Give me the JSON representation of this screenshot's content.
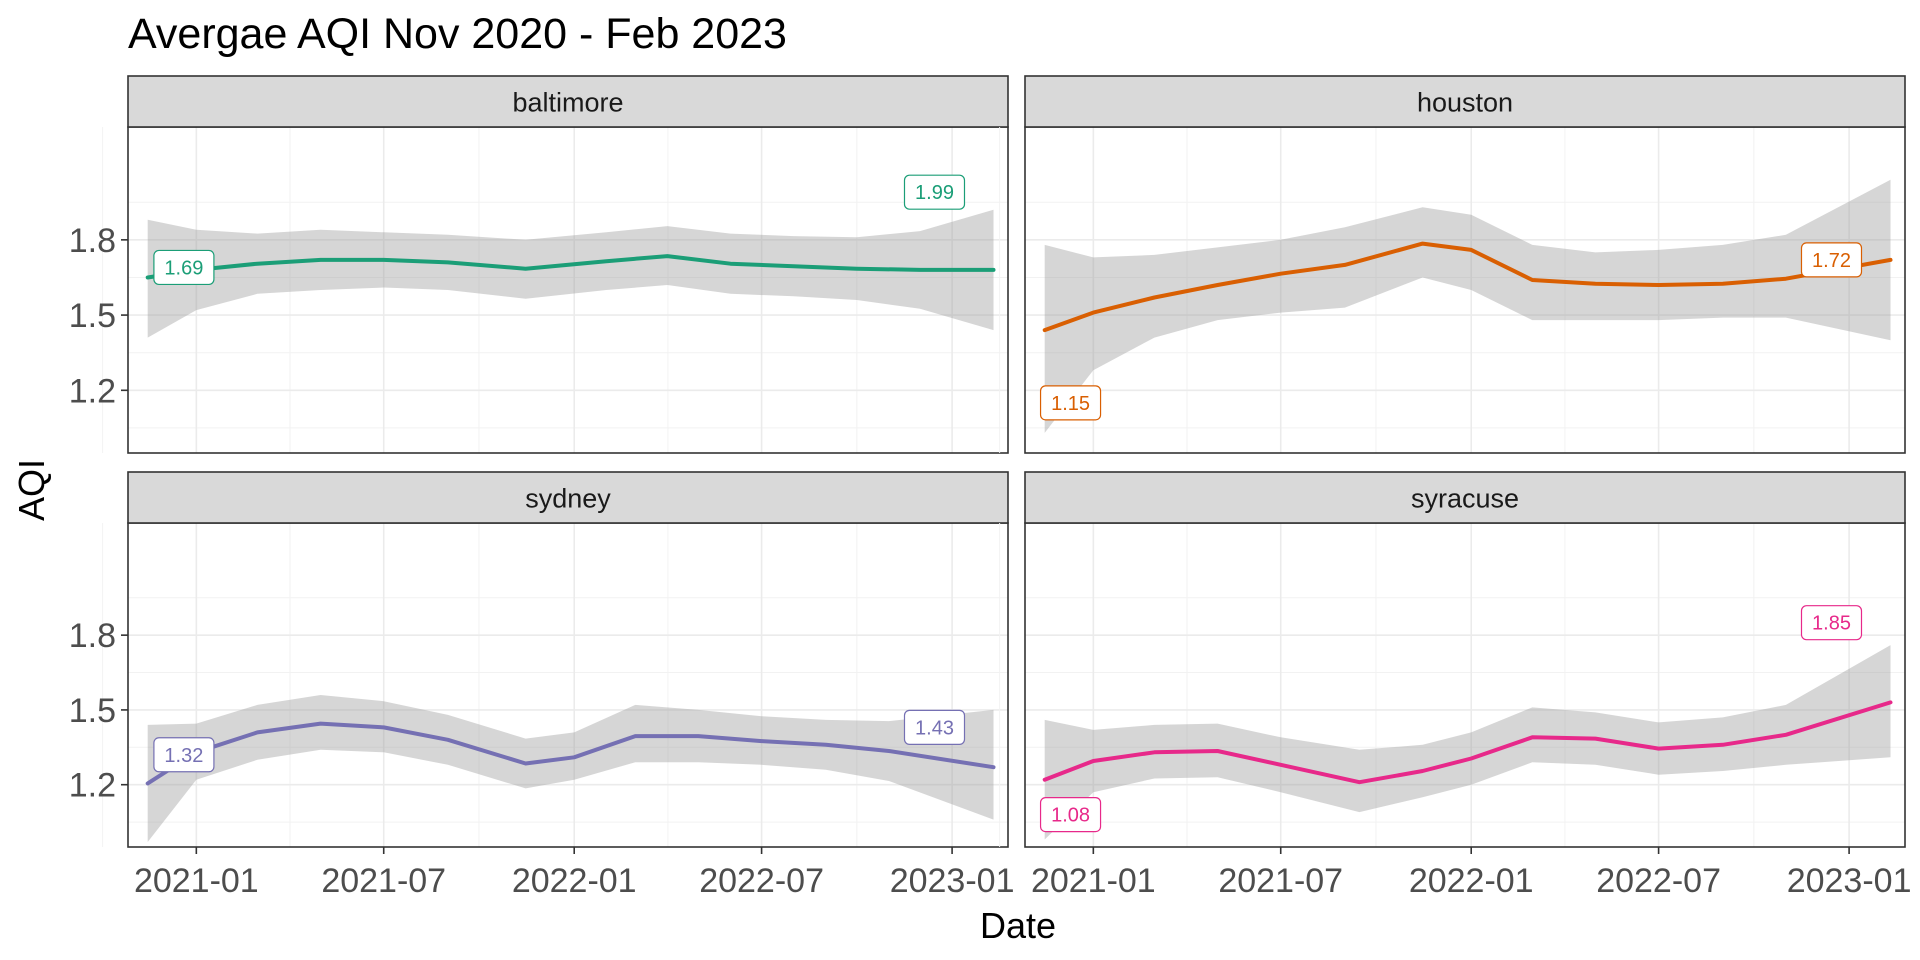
{
  "chart_data": {
    "type": "line",
    "title": "Avergae AQI Nov 2020 - Feb 2023",
    "xlabel": "Date",
    "ylabel": "AQI",
    "x_ticks": [
      "2021-01",
      "2021-07",
      "2022-01",
      "2022-07",
      "2023-01"
    ],
    "y_ticks": [
      "1.2",
      "1.5",
      "1.8"
    ],
    "xlim": [
      "2020-10-27",
      "2023-02-24"
    ],
    "ylim": [
      0.95,
      2.25
    ],
    "grid": true,
    "legend": "none",
    "panels": [
      {
        "name": "baltimore",
        "color": "#1b9e77",
        "series": {
          "x": [
            "2020-11-15",
            "2021-01-01",
            "2021-03-01",
            "2021-05-01",
            "2021-07-01",
            "2021-09-01",
            "2021-11-15",
            "2022-02-01",
            "2022-04-01",
            "2022-06-01",
            "2022-08-01",
            "2022-10-01",
            "2022-12-01",
            "2023-02-10"
          ],
          "y": [
            1.65,
            1.68,
            1.705,
            1.72,
            1.72,
            1.71,
            1.685,
            1.715,
            1.735,
            1.705,
            1.695,
            1.685,
            1.68,
            1.68
          ],
          "lower": [
            1.41,
            1.52,
            1.585,
            1.6,
            1.61,
            1.6,
            1.565,
            1.6,
            1.62,
            1.585,
            1.575,
            1.56,
            1.525,
            1.44
          ],
          "upper": [
            1.88,
            1.84,
            1.825,
            1.84,
            1.83,
            1.82,
            1.8,
            1.83,
            1.855,
            1.825,
            1.815,
            1.81,
            1.835,
            1.92
          ]
        },
        "labels": [
          {
            "text": "1.69",
            "x": "2020-12-20",
            "y": 1.69
          },
          {
            "text": "1.99",
            "x": "2022-12-15",
            "y": 1.99
          }
        ]
      },
      {
        "name": "houston",
        "color": "#d95f02",
        "series": {
          "x": [
            "2020-11-15",
            "2021-01-01",
            "2021-03-01",
            "2021-05-01",
            "2021-07-01",
            "2021-09-01",
            "2021-11-15",
            "2022-01-01",
            "2022-03-01",
            "2022-05-01",
            "2022-07-01",
            "2022-09-01",
            "2022-11-01",
            "2023-02-10"
          ],
          "y": [
            1.44,
            1.51,
            1.57,
            1.62,
            1.665,
            1.7,
            1.785,
            1.76,
            1.64,
            1.625,
            1.62,
            1.625,
            1.645,
            1.72
          ],
          "lower": [
            1.03,
            1.28,
            1.41,
            1.48,
            1.51,
            1.53,
            1.65,
            1.6,
            1.48,
            1.48,
            1.48,
            1.49,
            1.49,
            1.4
          ],
          "upper": [
            1.78,
            1.73,
            1.74,
            1.77,
            1.8,
            1.85,
            1.93,
            1.9,
            1.78,
            1.75,
            1.76,
            1.78,
            1.82,
            2.04
          ]
        },
        "labels": [
          {
            "text": "1.15",
            "x": "2020-12-10",
            "y": 1.15
          },
          {
            "text": "1.72",
            "x": "2022-12-15",
            "y": 1.72
          }
        ]
      },
      {
        "name": "sydney",
        "color": "#7570b3",
        "series": {
          "x": [
            "2020-11-15",
            "2021-01-01",
            "2021-03-01",
            "2021-05-01",
            "2021-07-01",
            "2021-09-01",
            "2021-11-15",
            "2022-01-01",
            "2022-03-01",
            "2022-05-01",
            "2022-07-01",
            "2022-09-01",
            "2022-11-01",
            "2023-02-10"
          ],
          "y": [
            1.205,
            1.33,
            1.41,
            1.445,
            1.43,
            1.38,
            1.285,
            1.31,
            1.395,
            1.395,
            1.375,
            1.36,
            1.335,
            1.27
          ],
          "lower": [
            0.97,
            1.22,
            1.3,
            1.34,
            1.33,
            1.28,
            1.185,
            1.22,
            1.29,
            1.29,
            1.28,
            1.26,
            1.215,
            1.06
          ],
          "upper": [
            1.44,
            1.445,
            1.52,
            1.56,
            1.535,
            1.48,
            1.385,
            1.41,
            1.52,
            1.5,
            1.475,
            1.46,
            1.455,
            1.5
          ]
        },
        "labels": [
          {
            "text": "1.32",
            "x": "2020-12-20",
            "y": 1.32
          },
          {
            "text": "1.43",
            "x": "2022-12-15",
            "y": 1.43
          }
        ]
      },
      {
        "name": "syracuse",
        "color": "#e7298a",
        "series": {
          "x": [
            "2020-11-15",
            "2021-01-01",
            "2021-03-01",
            "2021-05-01",
            "2021-07-01",
            "2021-09-15",
            "2021-11-15",
            "2022-01-01",
            "2022-03-01",
            "2022-05-01",
            "2022-07-01",
            "2022-09-01",
            "2022-11-01",
            "2023-02-10"
          ],
          "y": [
            1.22,
            1.295,
            1.33,
            1.335,
            1.28,
            1.21,
            1.255,
            1.305,
            1.39,
            1.385,
            1.345,
            1.36,
            1.4,
            1.53
          ],
          "lower": [
            0.98,
            1.17,
            1.225,
            1.23,
            1.17,
            1.09,
            1.15,
            1.2,
            1.29,
            1.28,
            1.24,
            1.255,
            1.28,
            1.31
          ],
          "upper": [
            1.46,
            1.42,
            1.44,
            1.445,
            1.39,
            1.34,
            1.36,
            1.41,
            1.51,
            1.49,
            1.45,
            1.47,
            1.52,
            1.76
          ]
        },
        "labels": [
          {
            "text": "1.08",
            "x": "2020-12-10",
            "y": 1.08
          },
          {
            "text": "1.85",
            "x": "2022-12-15",
            "y": 1.85
          }
        ]
      }
    ]
  }
}
